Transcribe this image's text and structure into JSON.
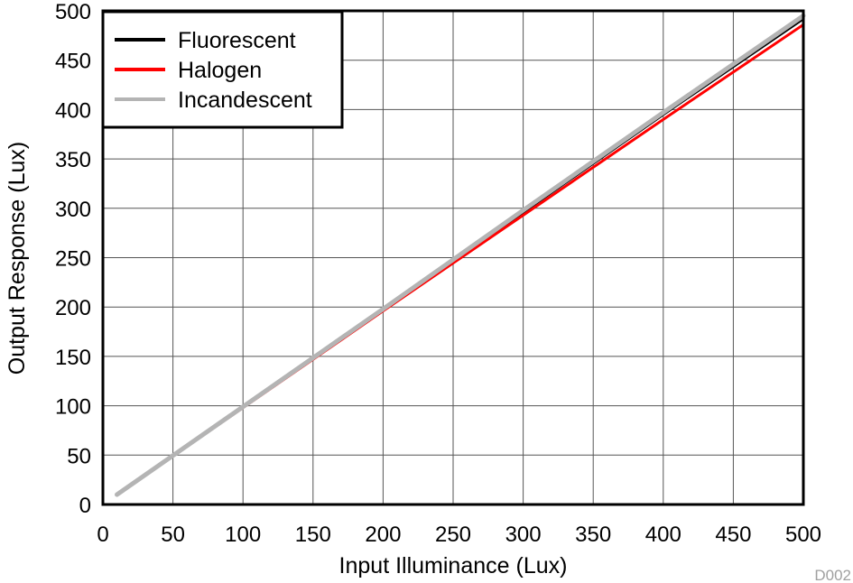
{
  "chart_data": {
    "type": "line",
    "xlabel": "Input Illuminance (Lux)",
    "ylabel": "Output Response (Lux)",
    "xlim": [
      0,
      500
    ],
    "ylim": [
      0,
      500
    ],
    "xticks": [
      0,
      50,
      100,
      150,
      200,
      250,
      300,
      350,
      400,
      450,
      500
    ],
    "yticks": [
      0,
      50,
      100,
      150,
      200,
      250,
      300,
      350,
      400,
      450,
      500
    ],
    "grid": true,
    "legend_position": "top-left",
    "series": [
      {
        "name": "Fluorescent",
        "color": "#000000",
        "x": [
          10,
          100,
          200,
          300,
          400,
          500
        ],
        "y": [
          10,
          98.5,
          197,
          296,
          395,
          492
        ]
      },
      {
        "name": "Halogen",
        "color": "#ff0000",
        "x": [
          10,
          100,
          200,
          300,
          400,
          500
        ],
        "y": [
          10,
          98,
          196,
          293,
          390,
          486
        ]
      },
      {
        "name": "Incandescent",
        "color": "#b4b4b4",
        "x": [
          10,
          100,
          200,
          300,
          400,
          500
        ],
        "y": [
          10,
          99,
          198,
          298,
          397,
          495
        ]
      }
    ],
    "figure_id": "D002"
  }
}
